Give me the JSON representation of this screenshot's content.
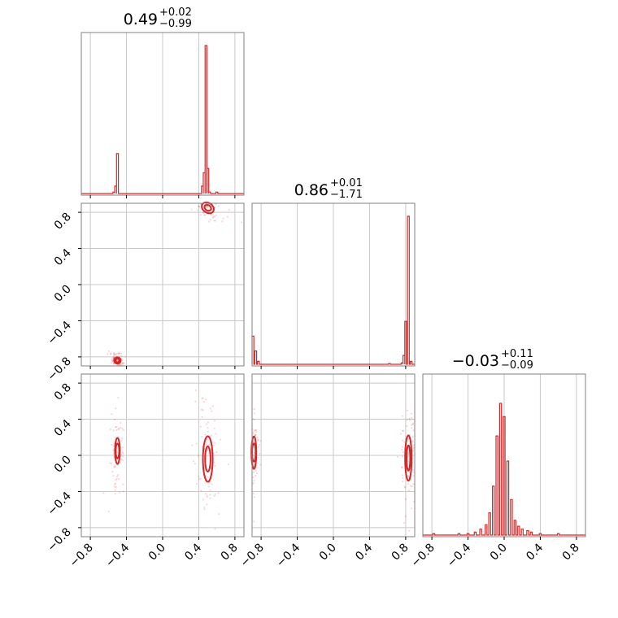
{
  "colors": {
    "accent": "#d62728",
    "grid": "#c8c8c8",
    "frame": "#808080"
  },
  "chart_data": {
    "type": "corner",
    "parameters": 3,
    "grid": true,
    "ticks": [
      "−0.8",
      "−0.4",
      "0.0",
      "0.4",
      "0.8"
    ],
    "tick_values": [
      -0.8,
      -0.4,
      0.0,
      0.4,
      0.8
    ],
    "range": [
      -0.9,
      0.9
    ],
    "titles": [
      {
        "median": "0.49",
        "plus": "+0.02",
        "minus": "−0.99"
      },
      {
        "median": "0.86",
        "plus": "+0.01",
        "minus": "−1.71"
      },
      {
        "median": "−0.03",
        "plus": "+0.11",
        "minus": "−0.09"
      }
    ],
    "histograms": [
      {
        "param": 1,
        "bins": [
          {
            "x": -0.54,
            "density": 0.01
          },
          {
            "x": -0.52,
            "density": 0.05
          },
          {
            "x": -0.5,
            "density": 0.27
          },
          {
            "x": -0.48,
            "density": 0.0
          },
          {
            "x": 0.44,
            "density": 0.05
          },
          {
            "x": 0.46,
            "density": 0.14
          },
          {
            "x": 0.48,
            "density": 1.0
          },
          {
            "x": 0.5,
            "density": 0.17
          },
          {
            "x": 0.52,
            "density": 0.01
          },
          {
            "x": 0.6,
            "density": 0.01
          }
        ]
      },
      {
        "param": 2,
        "bins": [
          {
            "x": -0.89,
            "density": 0.19
          },
          {
            "x": -0.86,
            "density": 0.09
          },
          {
            "x": -0.83,
            "density": 0.02
          },
          {
            "x": 0.62,
            "density": 0.005
          },
          {
            "x": 0.76,
            "density": 0.01
          },
          {
            "x": 0.78,
            "density": 0.06
          },
          {
            "x": 0.8,
            "density": 0.29
          },
          {
            "x": 0.83,
            "density": 1.0
          },
          {
            "x": 0.86,
            "density": 0.02
          }
        ]
      },
      {
        "param": 3,
        "bins": [
          {
            "x": -0.78,
            "density": 0.01
          },
          {
            "x": -0.5,
            "density": 0.01
          },
          {
            "x": -0.4,
            "density": 0.01
          },
          {
            "x": -0.32,
            "density": 0.02
          },
          {
            "x": -0.26,
            "density": 0.04
          },
          {
            "x": -0.2,
            "density": 0.07
          },
          {
            "x": -0.16,
            "density": 0.15
          },
          {
            "x": -0.12,
            "density": 0.33
          },
          {
            "x": -0.08,
            "density": 0.67
          },
          {
            "x": -0.04,
            "density": 0.89
          },
          {
            "x": 0.0,
            "density": 0.8
          },
          {
            "x": 0.04,
            "density": 0.5
          },
          {
            "x": 0.08,
            "density": 0.24
          },
          {
            "x": 0.12,
            "density": 0.1
          },
          {
            "x": 0.16,
            "density": 0.06
          },
          {
            "x": 0.2,
            "density": 0.04
          },
          {
            "x": 0.26,
            "density": 0.03
          },
          {
            "x": 0.3,
            "density": 0.02
          },
          {
            "x": 0.4,
            "density": 0.01
          },
          {
            "x": 0.6,
            "density": 0.01
          }
        ]
      }
    ],
    "joint": [
      {
        "xparam": 1,
        "yparam": 2,
        "modes": [
          {
            "x": 0.5,
            "y": 0.85,
            "sx": 0.04,
            "sy": 0.03,
            "tilt": -0.5
          },
          {
            "x": -0.5,
            "y": -0.84,
            "sx": 0.02,
            "sy": 0.02,
            "tilt": -0.5
          }
        ]
      },
      {
        "xparam": 1,
        "yparam": 3,
        "modes": [
          {
            "x": -0.5,
            "y": 0.05,
            "sx": 0.015,
            "sy": 0.08,
            "tilt": 0
          },
          {
            "x": 0.5,
            "y": -0.04,
            "sx": 0.03,
            "sy": 0.14,
            "tilt": 0
          }
        ]
      },
      {
        "xparam": 2,
        "yparam": 3,
        "modes": [
          {
            "x": -0.88,
            "y": 0.03,
            "sx": 0.015,
            "sy": 0.1,
            "tilt": 0
          },
          {
            "x": 0.83,
            "y": -0.03,
            "sx": 0.02,
            "sy": 0.14,
            "tilt": 0
          }
        ]
      }
    ]
  }
}
